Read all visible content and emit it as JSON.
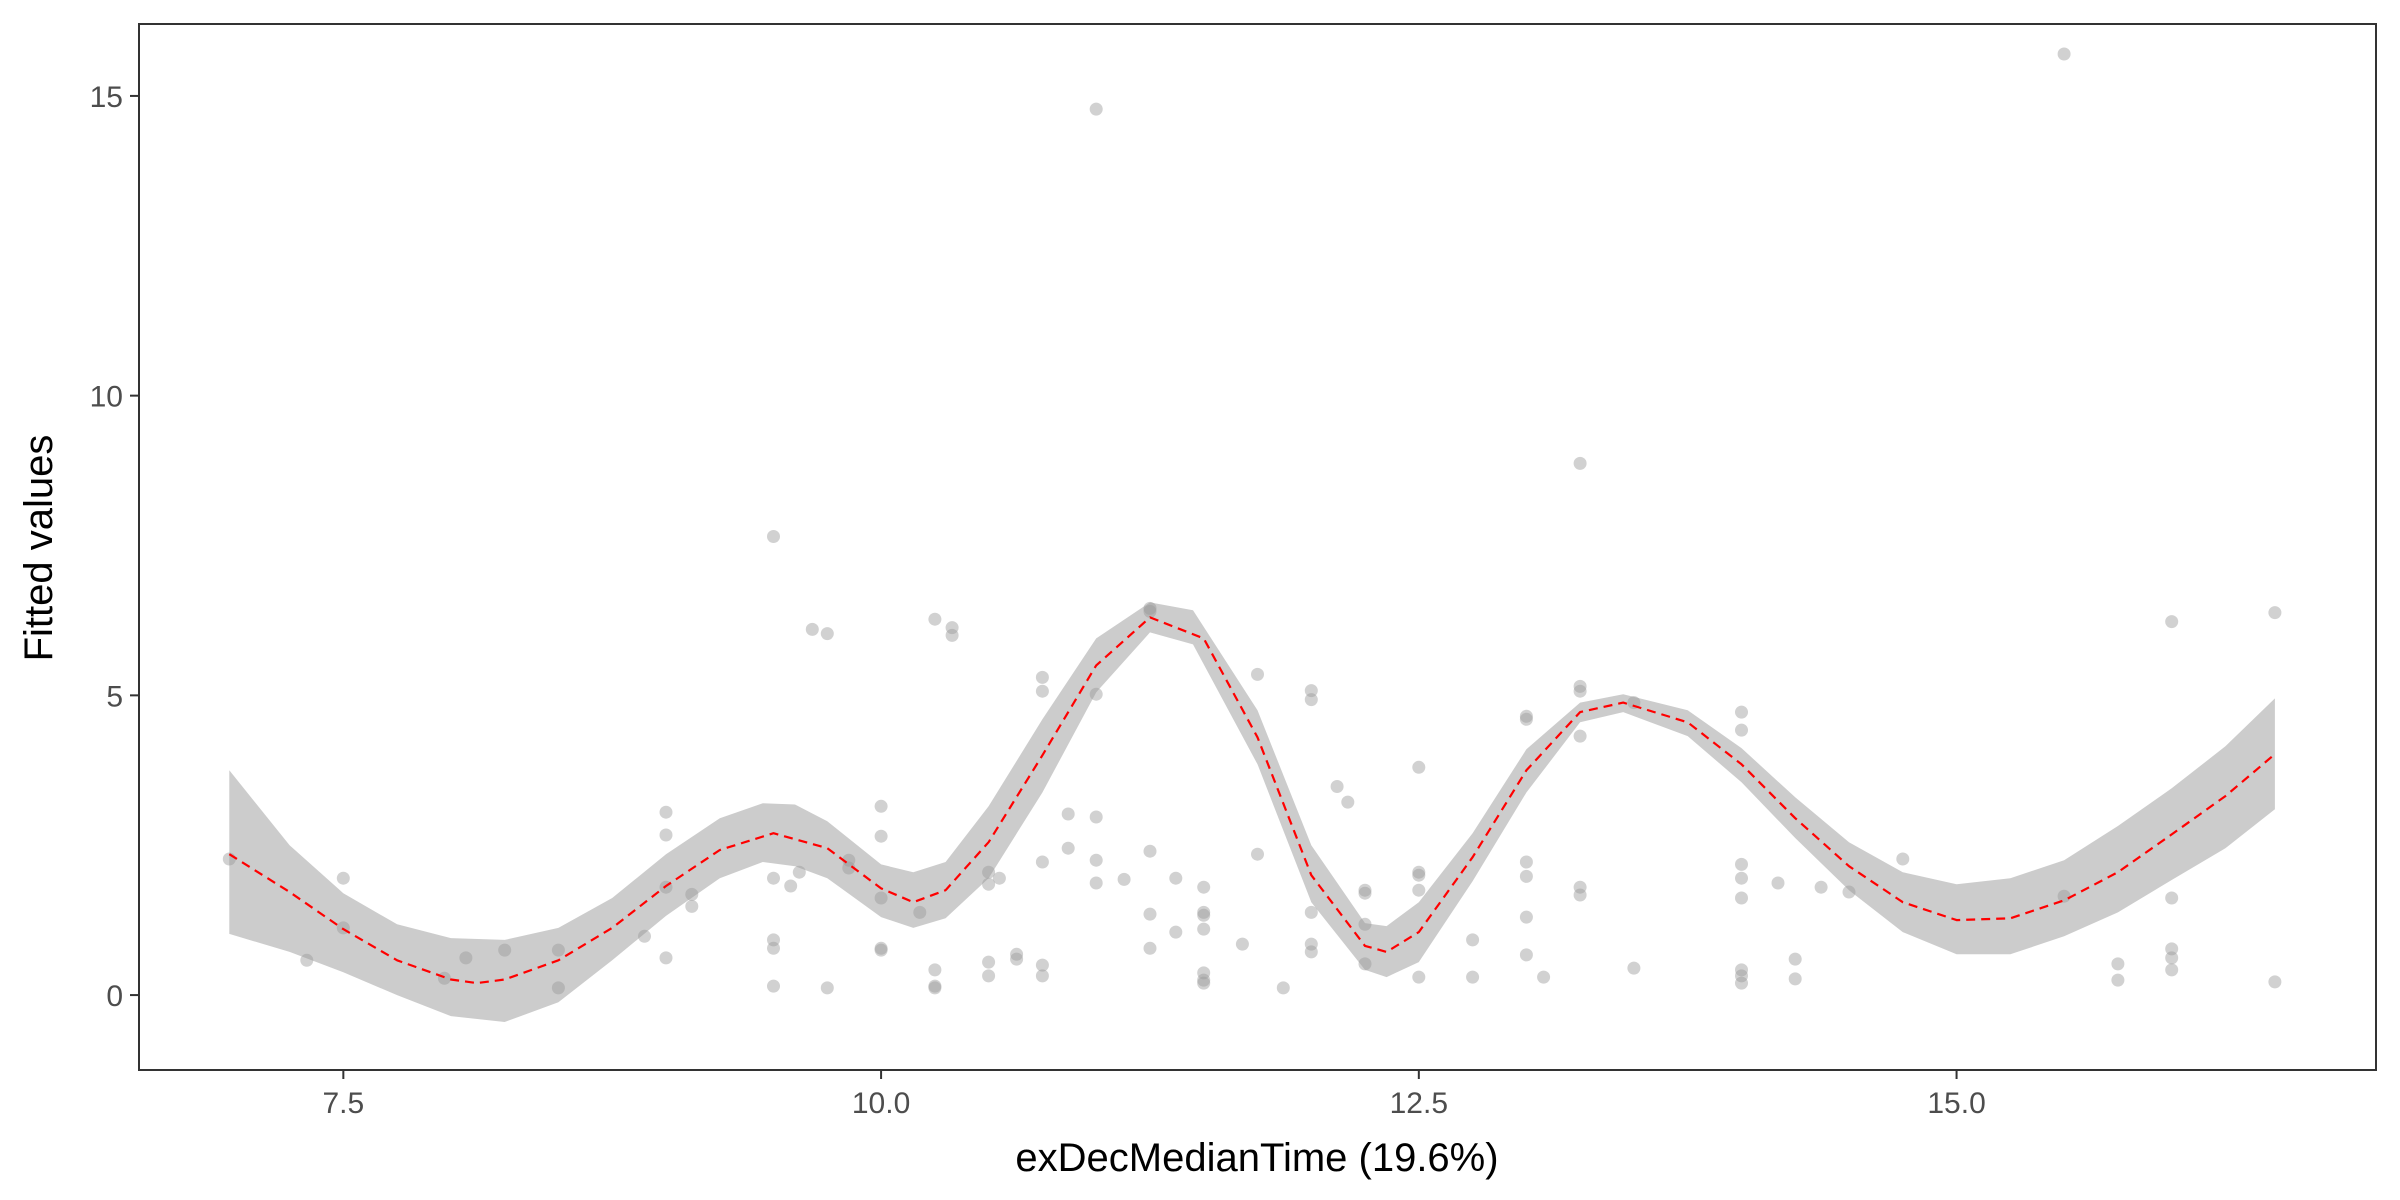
{
  "chart_data": {
    "type": "scatter",
    "xlabel": "exDecMedianTime  (19.6%)",
    "ylabel": "Fitted values",
    "xlim": [
      6.55,
      16.95
    ],
    "ylim": [
      -1.25,
      16.2
    ],
    "x_ticks": [
      7.5,
      10.0,
      12.5,
      15.0
    ],
    "x_tick_labels": [
      "7.5",
      "10.0",
      "12.5",
      "15.0"
    ],
    "y_ticks": [
      0,
      5,
      10,
      15
    ],
    "y_tick_labels": [
      "0",
      "5",
      "10",
      "15"
    ],
    "grid": false,
    "legend": "none",
    "colors": {
      "points": "#999999",
      "band": "#cccccc",
      "line": "#ff0000",
      "frame": "#333333",
      "tick_text": "#4d4d4d"
    },
    "series": [
      {
        "type": "scatter",
        "points": [
          [
            6.97,
            2.27
          ],
          [
            7.33,
            0.58
          ],
          [
            7.5,
            1.95
          ],
          [
            7.5,
            1.12
          ],
          [
            7.97,
            0.28
          ],
          [
            8.07,
            0.62
          ],
          [
            8.25,
            0.75
          ],
          [
            8.5,
            0.75
          ],
          [
            8.5,
            0.12
          ],
          [
            8.9,
            0.98
          ],
          [
            9.0,
            3.05
          ],
          [
            9.0,
            2.67
          ],
          [
            9.0,
            1.8
          ],
          [
            9.0,
            0.62
          ],
          [
            9.12,
            1.68
          ],
          [
            9.12,
            1.48
          ],
          [
            9.5,
            7.65
          ],
          [
            9.5,
            1.95
          ],
          [
            9.5,
            0.92
          ],
          [
            9.5,
            0.78
          ],
          [
            9.5,
            0.15
          ],
          [
            9.58,
            1.82
          ],
          [
            9.62,
            2.05
          ],
          [
            9.68,
            6.1
          ],
          [
            9.75,
            6.03
          ],
          [
            9.75,
            0.12
          ],
          [
            9.85,
            2.25
          ],
          [
            9.85,
            2.12
          ],
          [
            10.0,
            3.15
          ],
          [
            10.0,
            2.65
          ],
          [
            10.0,
            1.62
          ],
          [
            10.0,
            0.78
          ],
          [
            10.0,
            0.75
          ],
          [
            10.18,
            1.38
          ],
          [
            10.25,
            6.27
          ],
          [
            10.25,
            0.42
          ],
          [
            10.25,
            0.15
          ],
          [
            10.25,
            0.12
          ],
          [
            10.33,
            6.13
          ],
          [
            10.33,
            6.0
          ],
          [
            10.5,
            2.05
          ],
          [
            10.5,
            1.85
          ],
          [
            10.5,
            0.55
          ],
          [
            10.5,
            0.32
          ],
          [
            10.55,
            1.95
          ],
          [
            10.63,
            0.68
          ],
          [
            10.63,
            0.6
          ],
          [
            10.75,
            5.3
          ],
          [
            10.75,
            5.07
          ],
          [
            10.75,
            2.22
          ],
          [
            10.75,
            0.5
          ],
          [
            10.75,
            0.32
          ],
          [
            10.87,
            3.02
          ],
          [
            10.87,
            2.45
          ],
          [
            11.0,
            14.78
          ],
          [
            11.0,
            5.02
          ],
          [
            11.0,
            2.97
          ],
          [
            11.0,
            2.25
          ],
          [
            11.0,
            1.87
          ],
          [
            11.13,
            1.93
          ],
          [
            11.25,
            6.45
          ],
          [
            11.25,
            6.4
          ],
          [
            11.25,
            2.4
          ],
          [
            11.25,
            1.35
          ],
          [
            11.25,
            0.78
          ],
          [
            11.37,
            1.95
          ],
          [
            11.37,
            1.05
          ],
          [
            11.5,
            1.8
          ],
          [
            11.5,
            1.38
          ],
          [
            11.5,
            1.33
          ],
          [
            11.5,
            1.1
          ],
          [
            11.5,
            0.37
          ],
          [
            11.5,
            0.25
          ],
          [
            11.5,
            0.2
          ],
          [
            11.68,
            0.85
          ],
          [
            11.75,
            5.35
          ],
          [
            11.75,
            2.35
          ],
          [
            11.87,
            0.12
          ],
          [
            12.0,
            5.08
          ],
          [
            12.0,
            4.93
          ],
          [
            12.0,
            1.38
          ],
          [
            12.0,
            0.85
          ],
          [
            12.0,
            0.72
          ],
          [
            12.12,
            3.48
          ],
          [
            12.17,
            3.22
          ],
          [
            12.25,
            1.75
          ],
          [
            12.25,
            1.7
          ],
          [
            12.25,
            1.18
          ],
          [
            12.25,
            0.52
          ],
          [
            12.5,
            3.8
          ],
          [
            12.5,
            2.05
          ],
          [
            12.5,
            2.0
          ],
          [
            12.5,
            1.75
          ],
          [
            12.5,
            0.3
          ],
          [
            12.75,
            0.92
          ],
          [
            12.75,
            0.3
          ],
          [
            13.0,
            4.65
          ],
          [
            13.0,
            4.6
          ],
          [
            13.0,
            2.22
          ],
          [
            13.0,
            1.98
          ],
          [
            13.0,
            1.3
          ],
          [
            13.0,
            0.67
          ],
          [
            13.08,
            0.3
          ],
          [
            13.25,
            8.87
          ],
          [
            13.25,
            5.15
          ],
          [
            13.25,
            5.07
          ],
          [
            13.25,
            4.32
          ],
          [
            13.25,
            1.8
          ],
          [
            13.25,
            1.67
          ],
          [
            13.5,
            4.88
          ],
          [
            13.5,
            0.45
          ],
          [
            14.0,
            4.72
          ],
          [
            14.0,
            4.42
          ],
          [
            14.0,
            2.18
          ],
          [
            14.0,
            1.95
          ],
          [
            14.0,
            1.62
          ],
          [
            14.0,
            0.42
          ],
          [
            14.0,
            0.32
          ],
          [
            14.0,
            0.2
          ],
          [
            14.17,
            1.87
          ],
          [
            14.25,
            0.6
          ],
          [
            14.25,
            0.27
          ],
          [
            14.37,
            1.8
          ],
          [
            14.5,
            1.72
          ],
          [
            14.75,
            2.27
          ],
          [
            15.5,
            15.7
          ],
          [
            15.5,
            1.65
          ],
          [
            15.75,
            0.52
          ],
          [
            15.75,
            0.25
          ],
          [
            16.0,
            6.23
          ],
          [
            16.0,
            1.62
          ],
          [
            16.0,
            0.77
          ],
          [
            16.0,
            0.62
          ],
          [
            16.0,
            0.42
          ],
          [
            16.48,
            6.38
          ],
          [
            16.48,
            0.22
          ]
        ]
      },
      {
        "type": "line",
        "style": "dashed",
        "points": [
          [
            6.97,
            2.35
          ],
          [
            7.25,
            1.72
          ],
          [
            7.5,
            1.1
          ],
          [
            7.75,
            0.58
          ],
          [
            8.0,
            0.26
          ],
          [
            8.12,
            0.2
          ],
          [
            8.25,
            0.26
          ],
          [
            8.5,
            0.58
          ],
          [
            8.75,
            1.12
          ],
          [
            9.0,
            1.82
          ],
          [
            9.25,
            2.42
          ],
          [
            9.5,
            2.7
          ],
          [
            9.75,
            2.45
          ],
          [
            10.0,
            1.78
          ],
          [
            10.15,
            1.55
          ],
          [
            10.3,
            1.75
          ],
          [
            10.5,
            2.55
          ],
          [
            10.75,
            4.0
          ],
          [
            11.0,
            5.5
          ],
          [
            11.25,
            6.3
          ],
          [
            11.5,
            5.95
          ],
          [
            11.75,
            4.3
          ],
          [
            12.0,
            2.0
          ],
          [
            12.25,
            0.82
          ],
          [
            12.35,
            0.72
          ],
          [
            12.5,
            1.05
          ],
          [
            12.75,
            2.3
          ],
          [
            13.0,
            3.75
          ],
          [
            13.25,
            4.72
          ],
          [
            13.45,
            4.88
          ],
          [
            13.75,
            4.55
          ],
          [
            14.0,
            3.85
          ],
          [
            14.25,
            2.95
          ],
          [
            14.5,
            2.15
          ],
          [
            14.75,
            1.55
          ],
          [
            15.0,
            1.25
          ],
          [
            15.25,
            1.28
          ],
          [
            15.5,
            1.58
          ],
          [
            15.75,
            2.05
          ],
          [
            16.0,
            2.68
          ],
          [
            16.25,
            3.32
          ],
          [
            16.48,
            4.02
          ]
        ]
      },
      {
        "type": "band",
        "upper": [
          [
            6.97,
            3.75
          ],
          [
            7.25,
            2.5
          ],
          [
            7.5,
            1.7
          ],
          [
            7.75,
            1.18
          ],
          [
            8.0,
            0.95
          ],
          [
            8.25,
            0.92
          ],
          [
            8.5,
            1.12
          ],
          [
            8.75,
            1.62
          ],
          [
            9.0,
            2.35
          ],
          [
            9.25,
            2.95
          ],
          [
            9.45,
            3.2
          ],
          [
            9.6,
            3.18
          ],
          [
            9.75,
            2.9
          ],
          [
            10.0,
            2.18
          ],
          [
            10.15,
            2.05
          ],
          [
            10.3,
            2.22
          ],
          [
            10.5,
            3.15
          ],
          [
            10.75,
            4.6
          ],
          [
            11.0,
            5.95
          ],
          [
            11.25,
            6.55
          ],
          [
            11.45,
            6.42
          ],
          [
            11.75,
            4.75
          ],
          [
            12.0,
            2.5
          ],
          [
            12.25,
            1.2
          ],
          [
            12.35,
            1.15
          ],
          [
            12.5,
            1.55
          ],
          [
            12.75,
            2.7
          ],
          [
            13.0,
            4.1
          ],
          [
            13.25,
            4.88
          ],
          [
            13.45,
            5.02
          ],
          [
            13.75,
            4.75
          ],
          [
            14.0,
            4.12
          ],
          [
            14.25,
            3.3
          ],
          [
            14.5,
            2.55
          ],
          [
            14.75,
            2.05
          ],
          [
            15.0,
            1.85
          ],
          [
            15.25,
            1.95
          ],
          [
            15.5,
            2.25
          ],
          [
            15.75,
            2.82
          ],
          [
            16.0,
            3.45
          ],
          [
            16.25,
            4.15
          ],
          [
            16.48,
            4.95
          ]
        ],
        "lower": [
          [
            6.97,
            1.02
          ],
          [
            7.25,
            0.72
          ],
          [
            7.5,
            0.38
          ],
          [
            7.75,
            0.0
          ],
          [
            8.0,
            -0.35
          ],
          [
            8.25,
            -0.45
          ],
          [
            8.5,
            -0.12
          ],
          [
            8.75,
            0.58
          ],
          [
            9.0,
            1.32
          ],
          [
            9.25,
            1.95
          ],
          [
            9.45,
            2.22
          ],
          [
            9.6,
            2.15
          ],
          [
            9.75,
            1.95
          ],
          [
            10.0,
            1.3
          ],
          [
            10.15,
            1.12
          ],
          [
            10.3,
            1.28
          ],
          [
            10.5,
            1.95
          ],
          [
            10.75,
            3.38
          ],
          [
            11.0,
            5.05
          ],
          [
            11.25,
            6.05
          ],
          [
            11.45,
            5.85
          ],
          [
            11.75,
            3.85
          ],
          [
            12.0,
            1.55
          ],
          [
            12.25,
            0.42
          ],
          [
            12.35,
            0.3
          ],
          [
            12.5,
            0.55
          ],
          [
            12.75,
            1.9
          ],
          [
            13.0,
            3.38
          ],
          [
            13.25,
            4.55
          ],
          [
            13.45,
            4.72
          ],
          [
            13.75,
            4.32
          ],
          [
            14.0,
            3.55
          ],
          [
            14.25,
            2.62
          ],
          [
            14.5,
            1.75
          ],
          [
            14.75,
            1.05
          ],
          [
            15.0,
            0.68
          ],
          [
            15.25,
            0.68
          ],
          [
            15.5,
            0.98
          ],
          [
            15.75,
            1.38
          ],
          [
            16.0,
            1.92
          ],
          [
            16.25,
            2.45
          ],
          [
            16.48,
            3.1
          ]
        ]
      }
    ]
  }
}
